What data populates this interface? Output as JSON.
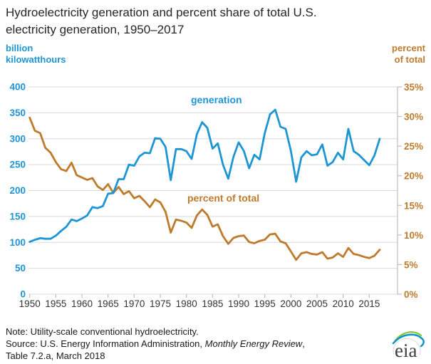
{
  "header": {
    "title_line1": "Hydroelectricity generation and percent share of total U.S.",
    "title_line2": "electricity generation, 1950–2017"
  },
  "axes": {
    "left_unit_line1": "billion",
    "left_unit_line2": "kilowatthours",
    "right_unit_line1": "percent",
    "right_unit_line2": "of total"
  },
  "colors": {
    "generation_blue": "#1e95d4",
    "percent_orange": "#bf7b2d",
    "gridline": "#d9d9d9",
    "axis_line": "#bfbfbf",
    "xlabel_text": "#333333"
  },
  "notes": {
    "note_line": "Note: Utility-scale conventional hydroelectricity.",
    "source_prefix": "Source: U.S. Energy Information Administration, ",
    "source_italic": "Monthly Energy Review",
    "source_suffix": ",",
    "source_line2": "Table 7.2.a, March 2018"
  },
  "logo": {
    "text": "eia"
  },
  "chart_data": {
    "type": "line",
    "title": "Hydroelectricity generation and percent share of total U.S. electricity generation, 1950–2017",
    "x": [
      1950,
      1951,
      1952,
      1953,
      1954,
      1955,
      1956,
      1957,
      1958,
      1959,
      1960,
      1961,
      1962,
      1963,
      1964,
      1965,
      1966,
      1967,
      1968,
      1969,
      1970,
      1971,
      1972,
      1973,
      1974,
      1975,
      1976,
      1977,
      1978,
      1979,
      1980,
      1981,
      1982,
      1983,
      1984,
      1985,
      1986,
      1987,
      1988,
      1989,
      1990,
      1991,
      1992,
      1993,
      1994,
      1995,
      1996,
      1997,
      1998,
      1999,
      2000,
      2001,
      2002,
      2003,
      2004,
      2005,
      2006,
      2007,
      2008,
      2009,
      2010,
      2011,
      2012,
      2013,
      2014,
      2015,
      2016,
      2017
    ],
    "series": [
      {
        "name": "generation",
        "axis": "left",
        "units": "billion kilowatthours",
        "values": [
          101,
          105,
          108,
          107,
          107,
          113,
          122,
          130,
          144,
          141,
          146,
          152,
          168,
          166,
          170,
          194,
          195,
          222,
          222,
          250,
          248,
          266,
          273,
          272,
          301,
          300,
          284,
          220,
          280,
          280,
          276,
          261,
          309,
          332,
          321,
          281,
          291,
          250,
          223,
          265,
          293,
          276,
          243,
          269,
          260,
          311,
          347,
          356,
          323,
          319,
          276,
          217,
          264,
          276,
          268,
          270,
          289,
          248,
          255,
          273,
          260,
          319,
          276,
          269,
          259,
          249,
          268,
          300
        ]
      },
      {
        "name": "percent of total",
        "axis": "right",
        "units": "percent",
        "values": [
          29.8,
          27.6,
          27.2,
          24.7,
          23.9,
          22.3,
          21.1,
          20.8,
          22.2,
          20.1,
          19.7,
          19.3,
          19.6,
          18.2,
          17.6,
          18.6,
          17.1,
          18.1,
          16.9,
          17.4,
          16.2,
          16.6,
          15.7,
          14.7,
          16.0,
          15.5,
          13.9,
          10.4,
          12.6,
          12.4,
          12.1,
          11.2,
          13.3,
          14.3,
          13.4,
          11.4,
          11.8,
          9.8,
          8.5,
          9.5,
          9.8,
          9.9,
          8.8,
          8.6,
          9.0,
          9.2,
          10.1,
          10.2,
          8.9,
          8.6,
          7.2,
          5.8,
          6.9,
          7.1,
          6.8,
          6.7,
          7.1,
          6.0,
          6.2,
          6.9,
          6.3,
          7.8,
          6.8,
          6.6,
          6.3,
          6.1,
          6.5,
          7.5
        ]
      }
    ],
    "left_axis": {
      "range": [
        0,
        400
      ],
      "ticks": [
        0,
        50,
        100,
        150,
        200,
        250,
        300,
        350,
        400
      ]
    },
    "right_axis": {
      "range": [
        0,
        35
      ],
      "tick_labels": [
        "0%",
        "5%",
        "10%",
        "15%",
        "20%",
        "25%",
        "30%",
        "35%"
      ]
    },
    "x_tick_labels": [
      "1950",
      "1955",
      "1960",
      "1965",
      "1970",
      "1975",
      "1980",
      "1985",
      "1990",
      "1995",
      "2000",
      "2005",
      "2010",
      "2015"
    ],
    "grid": "horizontal",
    "legend_position": "inline-labels"
  }
}
